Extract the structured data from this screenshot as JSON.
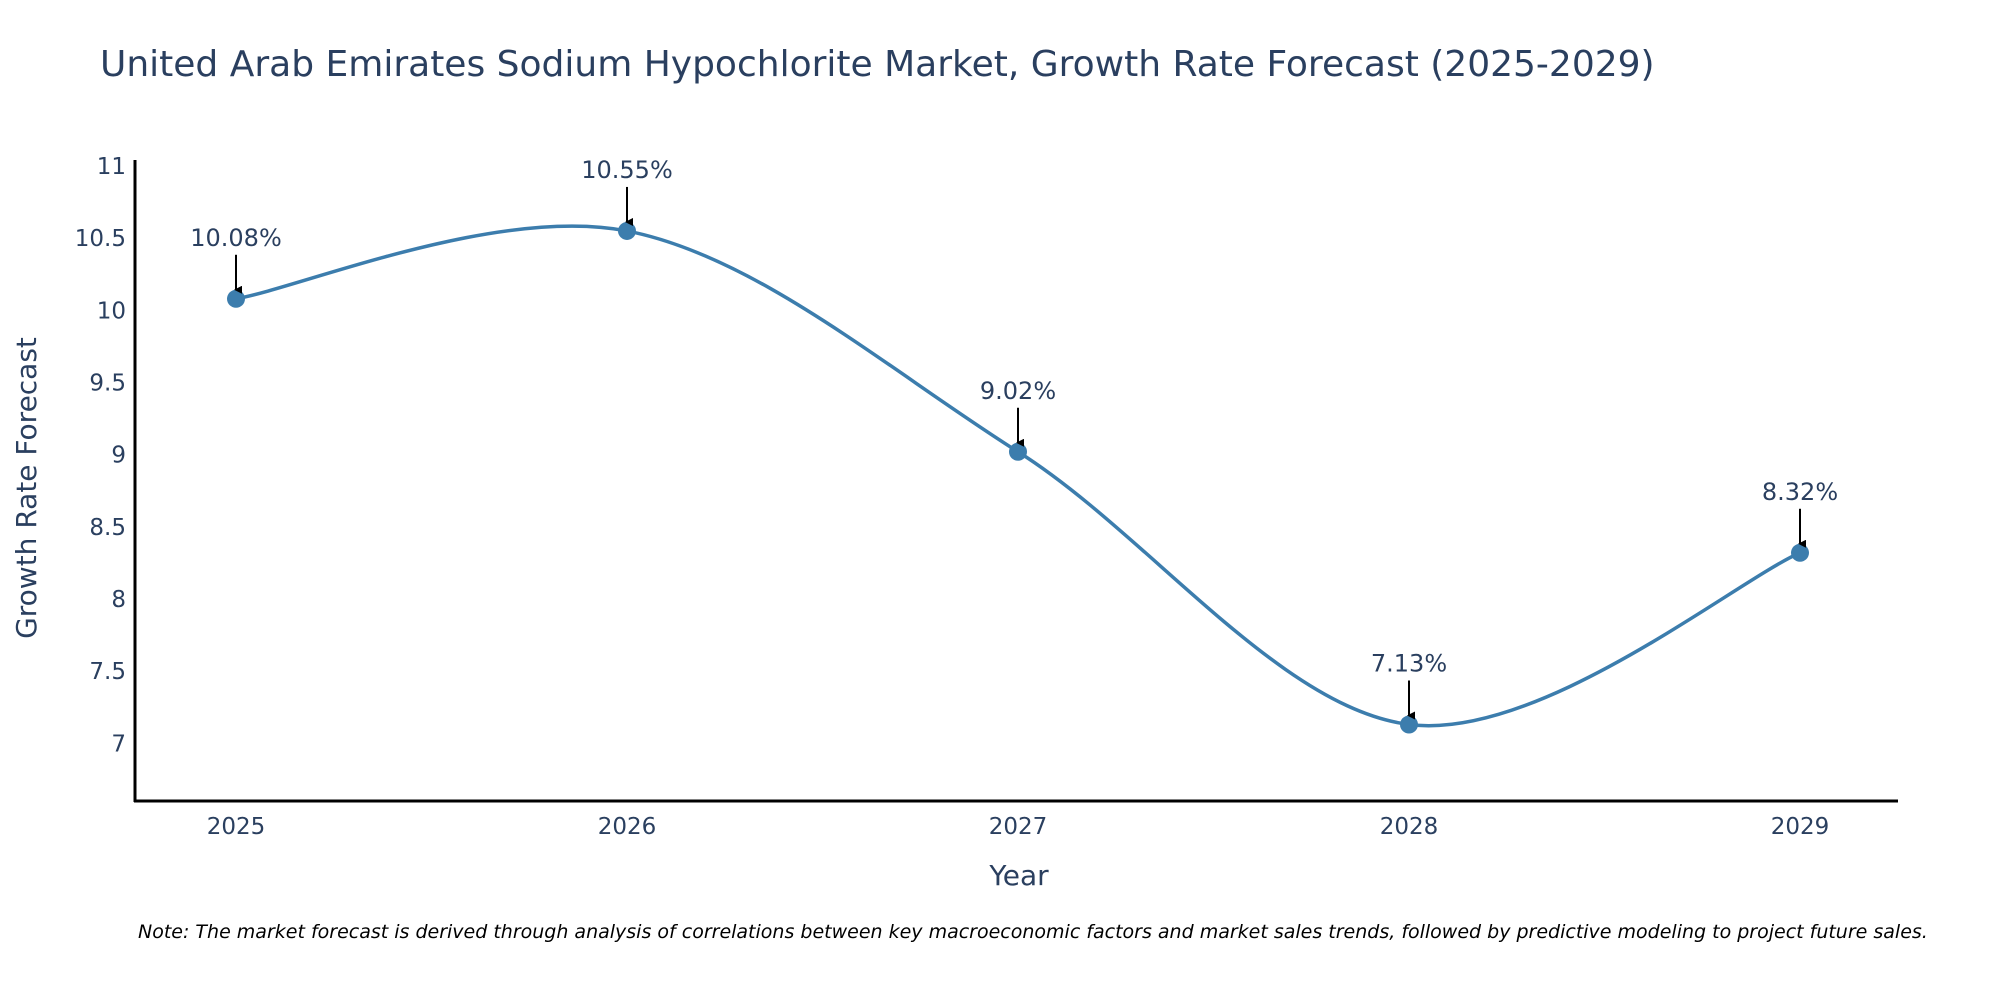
{
  "chart_data": {
    "type": "line",
    "title": "United Arab Emirates Sodium Hypochlorite Market, Growth Rate Forecast (2025-2029)",
    "xlabel": "Year",
    "ylabel": "Growth Rate Forecast",
    "categories": [
      "2025",
      "2026",
      "2027",
      "2028",
      "2029"
    ],
    "values": [
      10.08,
      10.55,
      9.02,
      7.13,
      8.32
    ],
    "data_labels": [
      "10.08%",
      "10.55%",
      "9.02%",
      "7.13%",
      "8.32%"
    ],
    "ylim": [
      6.6,
      11.0
    ],
    "yticks": [
      7,
      7.5,
      8,
      8.5,
      9,
      9.5,
      10,
      10.5,
      11
    ],
    "ytick_labels": [
      "7",
      "7.5",
      "8",
      "8.5",
      "9",
      "9.5",
      "10",
      "10.5",
      "11"
    ],
    "line_shape": "spline",
    "grid": false,
    "legend": "none",
    "colors": {
      "line": "#3c7dad",
      "marker": "#3c7dad",
      "text": "#2a3f5f",
      "axis": "#000000",
      "arrow": "#000000"
    },
    "note": "Note: The market forecast is derived through analysis of correlations between key macroeconomic factors and market sales trends, followed by predictive modeling to project future sales."
  }
}
